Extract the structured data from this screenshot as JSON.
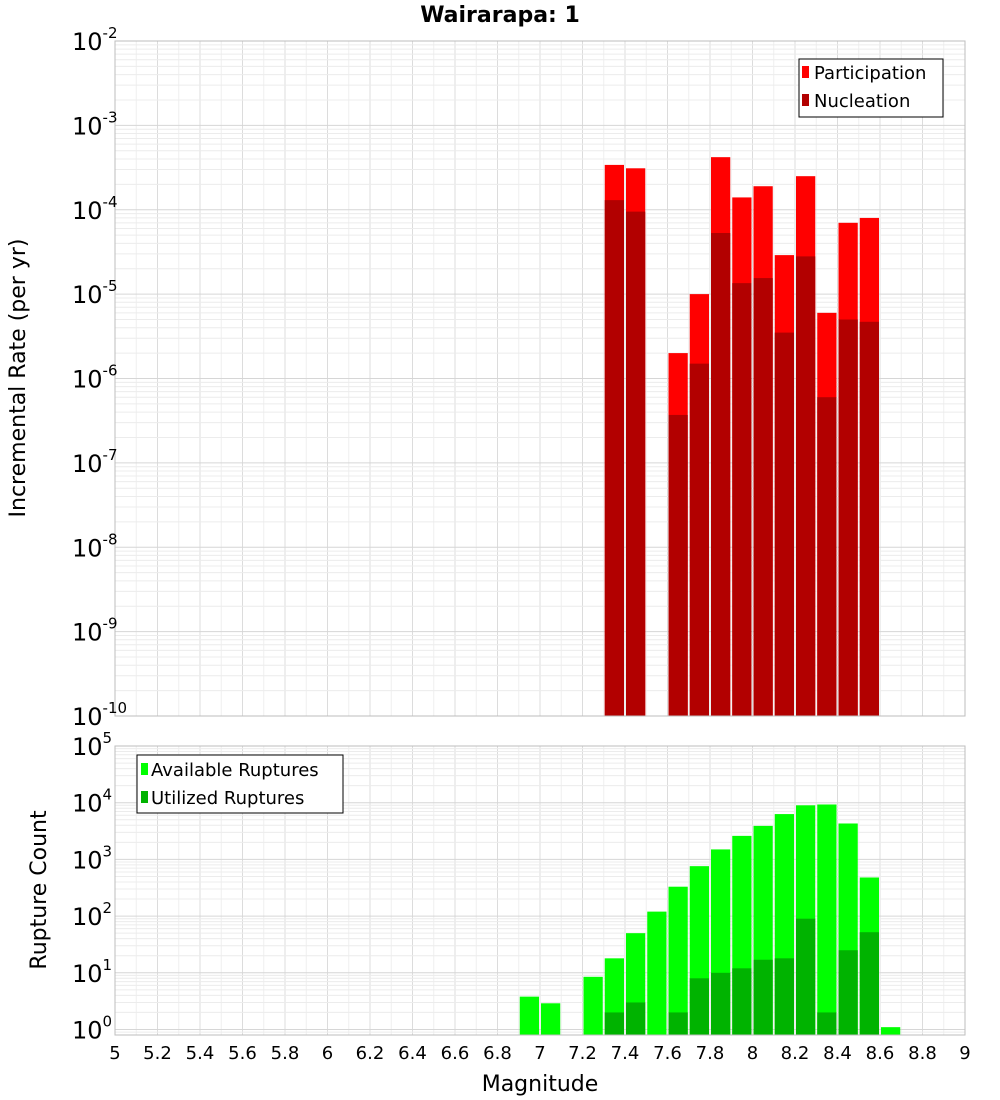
{
  "figure_title": "Wairarapa: 1",
  "chart_data": [
    {
      "type": "bar",
      "ylabel": "Incremental Rate (per yr)",
      "xlabel": "",
      "yscale": "log",
      "ylim": [
        1e-10,
        0.01
      ],
      "xlim": [
        5,
        9
      ],
      "bin_width": 0.1,
      "grid": true,
      "legend_position": "top-right",
      "ytick_labels": [
        {
          "base": "10",
          "exp": "-10"
        },
        {
          "base": "10",
          "exp": "-9"
        },
        {
          "base": "10",
          "exp": "-8"
        },
        {
          "base": "10",
          "exp": "-7"
        },
        {
          "base": "10",
          "exp": "-6"
        },
        {
          "base": "10",
          "exp": "-5"
        },
        {
          "base": "10",
          "exp": "-4"
        },
        {
          "base": "10",
          "exp": "-3"
        },
        {
          "base": "10",
          "exp": "-2"
        }
      ],
      "series": [
        {
          "name": "Participation",
          "color": "#ff0000",
          "x": [
            7.35,
            7.45,
            7.65,
            7.75,
            7.85,
            7.95,
            8.05,
            8.15,
            8.25,
            8.35,
            8.45,
            8.55
          ],
          "values": [
            0.00034,
            0.00031,
            2e-06,
            1e-05,
            0.00042,
            0.00014,
            0.00019,
            2.9e-05,
            0.00025,
            6e-06,
            7e-05,
            8e-05
          ]
        },
        {
          "name": "Nucleation",
          "color": "#b20000",
          "x": [
            7.35,
            7.45,
            7.65,
            7.75,
            7.85,
            7.95,
            8.05,
            8.15,
            8.25,
            8.35,
            8.45,
            8.55
          ],
          "values": [
            0.00013,
            9.5e-05,
            3.7e-07,
            1.5e-06,
            5.3e-05,
            1.35e-05,
            1.55e-05,
            3.5e-06,
            2.8e-05,
            6e-07,
            5e-06,
            4.7e-06
          ]
        }
      ]
    },
    {
      "type": "bar",
      "ylabel": "Rupture Count",
      "xlabel": "Magnitude",
      "yscale": "log",
      "ylim": [
        0.8,
        100000.0
      ],
      "xlim": [
        5,
        9
      ],
      "bin_width": 0.1,
      "grid": true,
      "legend_position": "top-left",
      "xtick_labels": [
        "5",
        "5.2",
        "5.4",
        "5.6",
        "5.8",
        "6",
        "6.2",
        "6.4",
        "6.6",
        "6.8",
        "7",
        "7.2",
        "7.4",
        "7.6",
        "7.8",
        "8",
        "8.2",
        "8.4",
        "8.6",
        "8.8",
        "9"
      ],
      "ytick_labels": [
        {
          "base": "10",
          "exp": "0"
        },
        {
          "base": "10",
          "exp": "1"
        },
        {
          "base": "10",
          "exp": "2"
        },
        {
          "base": "10",
          "exp": "3"
        },
        {
          "base": "10",
          "exp": "4"
        },
        {
          "base": "10",
          "exp": "5"
        }
      ],
      "series": [
        {
          "name": "Available Ruptures",
          "color": "#00ff00",
          "x": [
            6.95,
            7.05,
            7.25,
            7.35,
            7.45,
            7.55,
            7.65,
            7.75,
            7.85,
            7.95,
            8.05,
            8.15,
            8.25,
            8.35,
            8.45,
            8.55,
            8.65
          ],
          "values": [
            3.8,
            2.9,
            8.5,
            18,
            50,
            120,
            330,
            760,
            1500,
            2600,
            3900,
            6300,
            9000,
            9300,
            4300,
            480,
            1.1
          ]
        },
        {
          "name": "Utilized Ruptures",
          "color": "#00b300",
          "x": [
            7.35,
            7.45,
            7.65,
            7.75,
            7.85,
            7.95,
            8.05,
            8.15,
            8.25,
            8.35,
            8.45,
            8.55
          ],
          "values": [
            2,
            3,
            2,
            8,
            10,
            12,
            17,
            18,
            90,
            2,
            25,
            52
          ]
        }
      ]
    }
  ]
}
